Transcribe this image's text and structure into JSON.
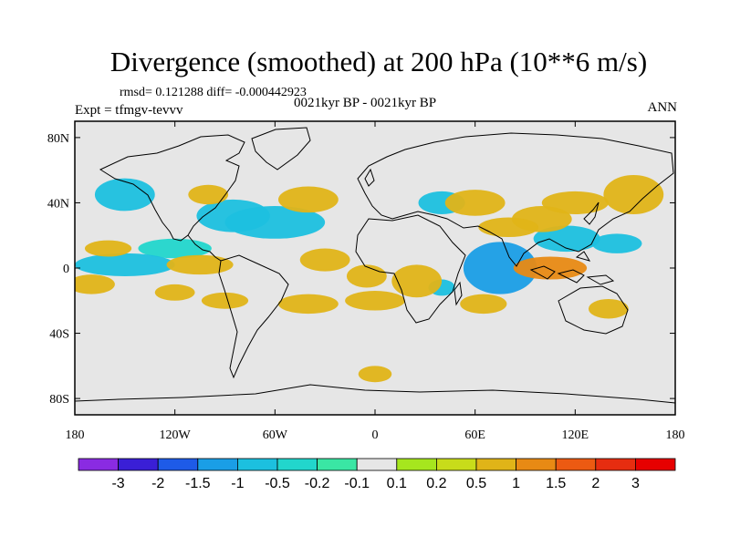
{
  "title": "Divergence (smoothed) at 200 hPa (10**6 m/s)",
  "stats": "rmsd= 0.121288 diff= -0.000442923",
  "experiment": "Expt = tfmgv-tevvv",
  "comparison": "0021kyr BP - 0021kyr BP",
  "season": "ANN",
  "axes": {
    "lon_ticks": [
      "180",
      "120W",
      "60W",
      "0",
      "60E",
      "120E",
      "180"
    ],
    "lat_ticks": [
      "80N",
      "40N",
      "0",
      "40S",
      "80S"
    ],
    "lon_range": [
      -180,
      180
    ],
    "lat_range": [
      -90,
      90
    ]
  },
  "colorbar": {
    "labels": [
      "-3",
      "-2",
      "-1.5",
      "-1",
      "-0.5",
      "-0.2",
      "-0.1",
      "0.1",
      "0.2",
      "0.5",
      "1",
      "1.5",
      "2",
      "3"
    ],
    "colors": [
      "#8a2be2",
      "#3a1fd6",
      "#1e5be8",
      "#1a9ee6",
      "#1cc0df",
      "#22d6cc",
      "#3ae6a4",
      "#e6e6e6",
      "#a6e61e",
      "#c8dc1a",
      "#e0b418",
      "#e88a14",
      "#ec5a12",
      "#e62d10",
      "#e60000"
    ]
  },
  "map": {
    "background": "#e6e6e6",
    "anomalies": [
      {
        "lon": -150,
        "lat": 45,
        "rx": 18,
        "ry": 10,
        "level": "-0.5"
      },
      {
        "lon": -85,
        "lat": 32,
        "rx": 22,
        "ry": 10,
        "level": "-0.5"
      },
      {
        "lon": -60,
        "lat": 28,
        "rx": 30,
        "ry": 10,
        "level": "-0.5"
      },
      {
        "lon": -120,
        "lat": 12,
        "rx": 22,
        "ry": 6,
        "level": "-0.2"
      },
      {
        "lon": -150,
        "lat": 2,
        "rx": 30,
        "ry": 7,
        "level": "-0.5"
      },
      {
        "lon": 75,
        "lat": 0,
        "rx": 22,
        "ry": 16,
        "level": "-1"
      },
      {
        "lon": 115,
        "lat": 18,
        "rx": 20,
        "ry": 8,
        "level": "-0.5"
      },
      {
        "lon": 145,
        "lat": 15,
        "rx": 15,
        "ry": 6,
        "level": "-0.5"
      },
      {
        "lon": 40,
        "lat": 40,
        "rx": 14,
        "ry": 7,
        "level": "-0.5"
      },
      {
        "lon": 40,
        "lat": -12,
        "rx": 8,
        "ry": 5,
        "level": "-0.5"
      },
      {
        "lon": -160,
        "lat": 12,
        "rx": 14,
        "ry": 5,
        "level": "0.5"
      },
      {
        "lon": -100,
        "lat": 45,
        "rx": 12,
        "ry": 6,
        "level": "0.5"
      },
      {
        "lon": -105,
        "lat": 2,
        "rx": 20,
        "ry": 6,
        "level": "0.5"
      },
      {
        "lon": -40,
        "lat": 42,
        "rx": 18,
        "ry": 8,
        "level": "0.5"
      },
      {
        "lon": -30,
        "lat": 5,
        "rx": 15,
        "ry": 7,
        "level": "0.5"
      },
      {
        "lon": -5,
        "lat": -5,
        "rx": 12,
        "ry": 7,
        "level": "0.5"
      },
      {
        "lon": 25,
        "lat": -8,
        "rx": 15,
        "ry": 10,
        "level": "0.5"
      },
      {
        "lon": 60,
        "lat": 40,
        "rx": 18,
        "ry": 8,
        "level": "0.5"
      },
      {
        "lon": 100,
        "lat": 30,
        "rx": 18,
        "ry": 8,
        "level": "0.5"
      },
      {
        "lon": 105,
        "lat": 0,
        "rx": 22,
        "ry": 7,
        "level": "1"
      },
      {
        "lon": 155,
        "lat": 45,
        "rx": 18,
        "ry": 12,
        "level": "0.5"
      },
      {
        "lon": 140,
        "lat": -25,
        "rx": 12,
        "ry": 6,
        "level": "0.5"
      },
      {
        "lon": -170,
        "lat": -10,
        "rx": 14,
        "ry": 6,
        "level": "0.5"
      },
      {
        "lon": -90,
        "lat": -20,
        "rx": 14,
        "ry": 5,
        "level": "0.5"
      },
      {
        "lon": 0,
        "lat": -20,
        "rx": 18,
        "ry": 6,
        "level": "0.5"
      },
      {
        "lon": 65,
        "lat": -22,
        "rx": 14,
        "ry": 6,
        "level": "0.5"
      },
      {
        "lon": -40,
        "lat": -22,
        "rx": 18,
        "ry": 6,
        "level": "0.5"
      },
      {
        "lon": 120,
        "lat": 40,
        "rx": 20,
        "ry": 7,
        "level": "0.5"
      },
      {
        "lon": 80,
        "lat": 25,
        "rx": 18,
        "ry": 6,
        "level": "0.5"
      },
      {
        "lon": -120,
        "lat": -15,
        "rx": 12,
        "ry": 5,
        "level": "0.5"
      },
      {
        "lon": 0,
        "lat": -65,
        "rx": 10,
        "ry": 5,
        "level": "0.5"
      }
    ]
  }
}
